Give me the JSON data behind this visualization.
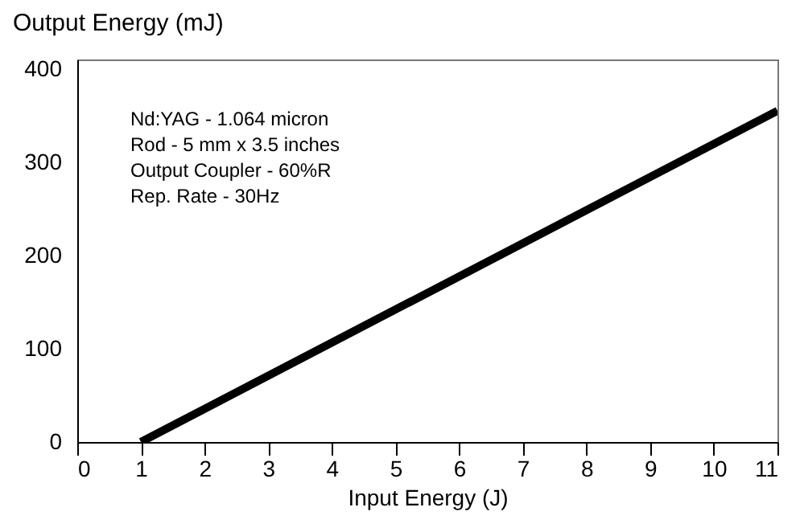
{
  "chart_data": {
    "type": "line",
    "ylabel": "Output Energy (mJ)",
    "xlabel": "Input Energy (J)",
    "x": [
      1,
      11
    ],
    "series": [
      {
        "color": "#000000",
        "values": [
          0,
          355
        ]
      }
    ],
    "xlim": [
      0,
      11
    ],
    "xticks": [
      0,
      1,
      2,
      3,
      4,
      5,
      6,
      7,
      8,
      9,
      10,
      11
    ],
    "ylim": [
      0,
      410
    ],
    "yticks": [
      0,
      100,
      200,
      300,
      400
    ],
    "grid": false,
    "annotations": [
      "Nd:YAG - 1.064 micron",
      "Rod - 5 mm x 3.5 inches",
      "Output Coupler - 60%R",
      "Rep. Rate - 30Hz"
    ]
  }
}
